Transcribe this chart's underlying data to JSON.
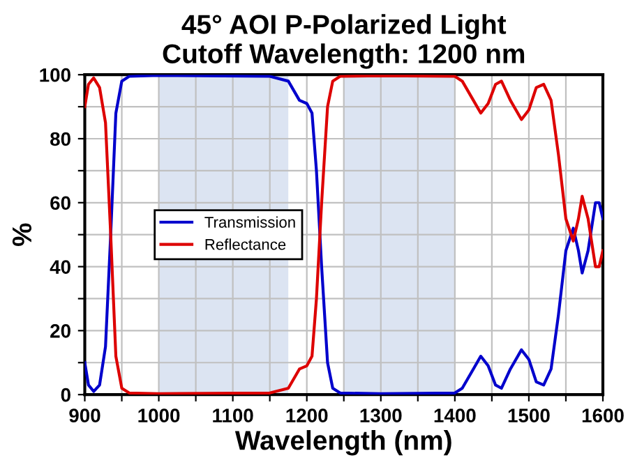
{
  "chart_data": {
    "type": "line",
    "title": "45° AOI P-Polarized Light\nCutoff Wavelength: 1200 nm",
    "xlabel": "Wavelength (nm)",
    "ylabel": "%",
    "x": [
      900,
      905,
      912,
      920,
      928,
      935,
      942,
      950,
      960,
      1000,
      1150,
      1175,
      1190,
      1200,
      1207,
      1213,
      1220,
      1228,
      1235,
      1245,
      1300,
      1400,
      1410,
      1425,
      1435,
      1445,
      1455,
      1463,
      1475,
      1490,
      1500,
      1510,
      1520,
      1530,
      1540,
      1550,
      1560,
      1567,
      1572,
      1580,
      1590,
      1595,
      1600
    ],
    "series": [
      {
        "name": "Transmission",
        "color": "#0000cc",
        "values": [
          10,
          3,
          1,
          3,
          15,
          50,
          88,
          98,
          99.5,
          99.8,
          99.5,
          98,
          92,
          91,
          88,
          70,
          40,
          10,
          2,
          0.5,
          0.3,
          0.5,
          2,
          8,
          12,
          9,
          3,
          2,
          8,
          14,
          11,
          4,
          3,
          8,
          25,
          45,
          52,
          45,
          38,
          45,
          60,
          60,
          55
        ]
      },
      {
        "name": "Reflectance",
        "color": "#dd0000",
        "values": [
          90,
          97,
          99,
          96,
          85,
          50,
          12,
          2,
          0.5,
          0.3,
          0.5,
          2,
          8,
          9,
          12,
          30,
          60,
          90,
          98,
          99.5,
          99.7,
          99.5,
          98,
          92,
          88,
          91,
          97,
          98,
          92,
          86,
          89,
          96,
          97,
          92,
          75,
          55,
          48,
          55,
          62,
          55,
          40,
          40,
          45
        ]
      }
    ],
    "bands": [
      {
        "axis": "x",
        "from": 1000,
        "to": 1175,
        "color": "#dce4f2"
      },
      {
        "axis": "x",
        "from": 1250,
        "to": 1400,
        "color": "#dce4f2"
      }
    ],
    "xlim": [
      900,
      1600
    ],
    "ylim": [
      0,
      100
    ],
    "xticks": [
      900,
      {
        "value": 950,
        "label": null
      },
      1000,
      {
        "value": 1050,
        "label": null
      },
      1100,
      {
        "value": 1150,
        "label": null
      },
      1200,
      {
        "value": 1250,
        "label": null
      },
      1300,
      {
        "value": 1350,
        "label": null
      },
      1400,
      {
        "value": 1450,
        "label": null
      },
      1500,
      {
        "value": 1550,
        "label": null
      },
      1600
    ],
    "yticks": [
      0,
      {
        "value": 10,
        "label": null
      },
      20,
      {
        "value": 30,
        "label": null
      },
      40,
      {
        "value": 50,
        "label": null
      },
      60,
      {
        "value": 70,
        "label": null
      },
      80,
      {
        "value": 90,
        "label": null
      },
      100
    ],
    "grid": true,
    "legend": "left",
    "marker": "none",
    "line_style": "solid"
  }
}
